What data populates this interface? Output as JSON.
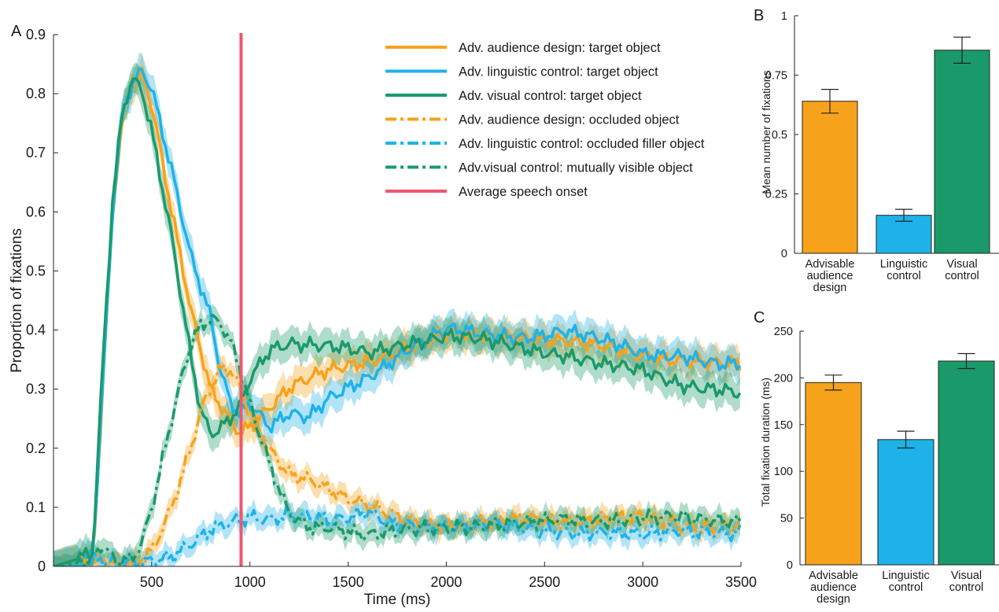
{
  "chart_data": [
    {
      "panel": "A",
      "type": "line",
      "xlabel": "Time (ms)",
      "ylabel": "Proportion of fixations",
      "xlim": [
        0,
        3500
      ],
      "ylim": [
        0,
        0.9
      ],
      "xticks": [
        "500",
        "1000",
        "1500",
        "2000",
        "2500",
        "3000",
        "3500"
      ],
      "yticks": [
        "0",
        "0.1",
        "0.2",
        "0.3",
        "0.4",
        "0.5",
        "0.6",
        "0.7",
        "0.8",
        "0.9"
      ],
      "legend_position": "top-right",
      "vertical_line": {
        "name": "Average speech onset",
        "x": 955,
        "color": "#f0566e"
      },
      "series": [
        {
          "name": "Adv. audience design: target object",
          "color": "#f7a21b",
          "dash": "solid",
          "x": [
            0,
            100,
            200,
            250,
            300,
            350,
            400,
            450,
            500,
            600,
            700,
            800,
            900,
            950,
            1000,
            1100,
            1200,
            1400,
            1600,
            1800,
            2000,
            2200,
            2400,
            2600,
            2800,
            3000,
            3200,
            3400,
            3500
          ],
          "y": [
            0,
            0.01,
            0.01,
            0.3,
            0.6,
            0.76,
            0.82,
            0.83,
            0.78,
            0.6,
            0.43,
            0.3,
            0.25,
            0.23,
            0.24,
            0.27,
            0.3,
            0.33,
            0.35,
            0.37,
            0.39,
            0.39,
            0.39,
            0.38,
            0.37,
            0.36,
            0.35,
            0.34,
            0.34
          ]
        },
        {
          "name": "Adv. linguistic control: target object",
          "color": "#1fb2e8",
          "dash": "solid",
          "x": [
            0,
            100,
            200,
            250,
            300,
            350,
            400,
            450,
            500,
            600,
            700,
            800,
            850,
            900,
            950,
            1000,
            1100,
            1200,
            1300,
            1400,
            1600,
            1800,
            2000,
            2200,
            2400,
            2600,
            2800,
            3000,
            3200,
            3400,
            3500
          ],
          "y": [
            0,
            0.01,
            0.015,
            0.3,
            0.6,
            0.77,
            0.82,
            0.84,
            0.81,
            0.67,
            0.52,
            0.42,
            0.33,
            0.28,
            0.26,
            0.28,
            0.24,
            0.26,
            0.25,
            0.28,
            0.32,
            0.37,
            0.4,
            0.39,
            0.39,
            0.4,
            0.38,
            0.36,
            0.36,
            0.34,
            0.34
          ]
        },
        {
          "name": "Adv. visual control: target object",
          "color": "#1a9a6b",
          "dash": "solid",
          "x": [
            0,
            100,
            200,
            250,
            300,
            350,
            400,
            450,
            500,
            600,
            700,
            750,
            800,
            850,
            900,
            950,
            1000,
            1100,
            1200,
            1400,
            1600,
            1800,
            2000,
            2200,
            2400,
            2600,
            2800,
            3000,
            3200,
            3400,
            3500
          ],
          "y": [
            0,
            0.01,
            0.02,
            0.34,
            0.62,
            0.77,
            0.83,
            0.81,
            0.74,
            0.56,
            0.35,
            0.26,
            0.22,
            0.23,
            0.25,
            0.27,
            0.32,
            0.37,
            0.38,
            0.37,
            0.36,
            0.38,
            0.39,
            0.38,
            0.37,
            0.36,
            0.34,
            0.33,
            0.31,
            0.3,
            0.29
          ]
        },
        {
          "name": "Adv. audience design: occluded object",
          "color": "#f7a21b",
          "dash": "dashdot",
          "x": [
            0,
            200,
            400,
            500,
            600,
            700,
            750,
            800,
            850,
            900,
            950,
            1000,
            1100,
            1200,
            1300,
            1400,
            1500,
            1600,
            1800,
            2000,
            2200,
            2400,
            2600,
            2800,
            3000,
            3200,
            3400,
            3500
          ],
          "y": [
            0,
            0.005,
            0.005,
            0.03,
            0.1,
            0.2,
            0.26,
            0.3,
            0.33,
            0.33,
            0.3,
            0.26,
            0.2,
            0.16,
            0.15,
            0.13,
            0.11,
            0.1,
            0.08,
            0.07,
            0.07,
            0.08,
            0.08,
            0.08,
            0.08,
            0.07,
            0.07,
            0.07
          ]
        },
        {
          "name": "Adv. linguistic control: occluded filler object",
          "color": "#1fb2e8",
          "dash": "dashdot",
          "x": [
            0,
            200,
            400,
            600,
            700,
            800,
            900,
            1000,
            1100,
            1200,
            1300,
            1400,
            1500,
            1600,
            1700,
            1800,
            2000,
            2200,
            2400,
            2600,
            2800,
            3000,
            3200,
            3400,
            3500
          ],
          "y": [
            0,
            0.005,
            0.005,
            0.02,
            0.04,
            0.06,
            0.07,
            0.08,
            0.08,
            0.09,
            0.09,
            0.08,
            0.08,
            0.09,
            0.07,
            0.07,
            0.07,
            0.07,
            0.06,
            0.06,
            0.06,
            0.05,
            0.06,
            0.06,
            0.06
          ]
        },
        {
          "name": "Adv.visual control: mutually visible object",
          "color": "#1a9a6b",
          "dash": "dashdot",
          "x": [
            0,
            200,
            250,
            300,
            350,
            400,
            450,
            500,
            600,
            650,
            700,
            750,
            800,
            850,
            900,
            950,
            1000,
            1100,
            1200,
            1300,
            1400,
            1500,
            1600,
            1800,
            2000,
            2200,
            2400,
            2600,
            2800,
            3000,
            3200,
            3400,
            3500
          ],
          "y": [
            0,
            0.01,
            0.035,
            0.01,
            0.005,
            0.01,
            0.04,
            0.1,
            0.25,
            0.32,
            0.38,
            0.41,
            0.42,
            0.41,
            0.38,
            0.33,
            0.27,
            0.17,
            0.09,
            0.07,
            0.07,
            0.06,
            0.05,
            0.06,
            0.07,
            0.07,
            0.07,
            0.08,
            0.08,
            0.08,
            0.08,
            0.08,
            0.08
          ]
        }
      ]
    },
    {
      "panel": "B",
      "type": "bar",
      "ylabel": "Mean number of fixations",
      "ylim": [
        0,
        1
      ],
      "yticks": [
        "0",
        "0.25",
        "0.5",
        "0.75",
        "1"
      ],
      "categories": [
        [
          "Advisable",
          "audience",
          "design"
        ],
        [
          "Linguistic",
          "control"
        ],
        [
          "Visual",
          "control"
        ]
      ],
      "values": [
        0.64,
        0.16,
        0.855
      ],
      "errors": [
        0.05,
        0.025,
        0.055
      ],
      "colors": [
        "#f7a21b",
        "#1fb2e8",
        "#1a9a6b"
      ]
    },
    {
      "panel": "C",
      "type": "bar",
      "ylabel": "Total fixation duration (ms)",
      "ylim": [
        0,
        250
      ],
      "yticks": [
        "0",
        "50",
        "100",
        "150",
        "200",
        "250"
      ],
      "categories": [
        [
          "Advisable",
          "audience",
          "design"
        ],
        [
          "Linguistic",
          "control"
        ],
        [
          "Visual",
          "control"
        ]
      ],
      "values": [
        195,
        134,
        218
      ],
      "errors": [
        8,
        9,
        8
      ],
      "colors": [
        "#f7a21b",
        "#1fb2e8",
        "#1a9a6b"
      ]
    }
  ]
}
